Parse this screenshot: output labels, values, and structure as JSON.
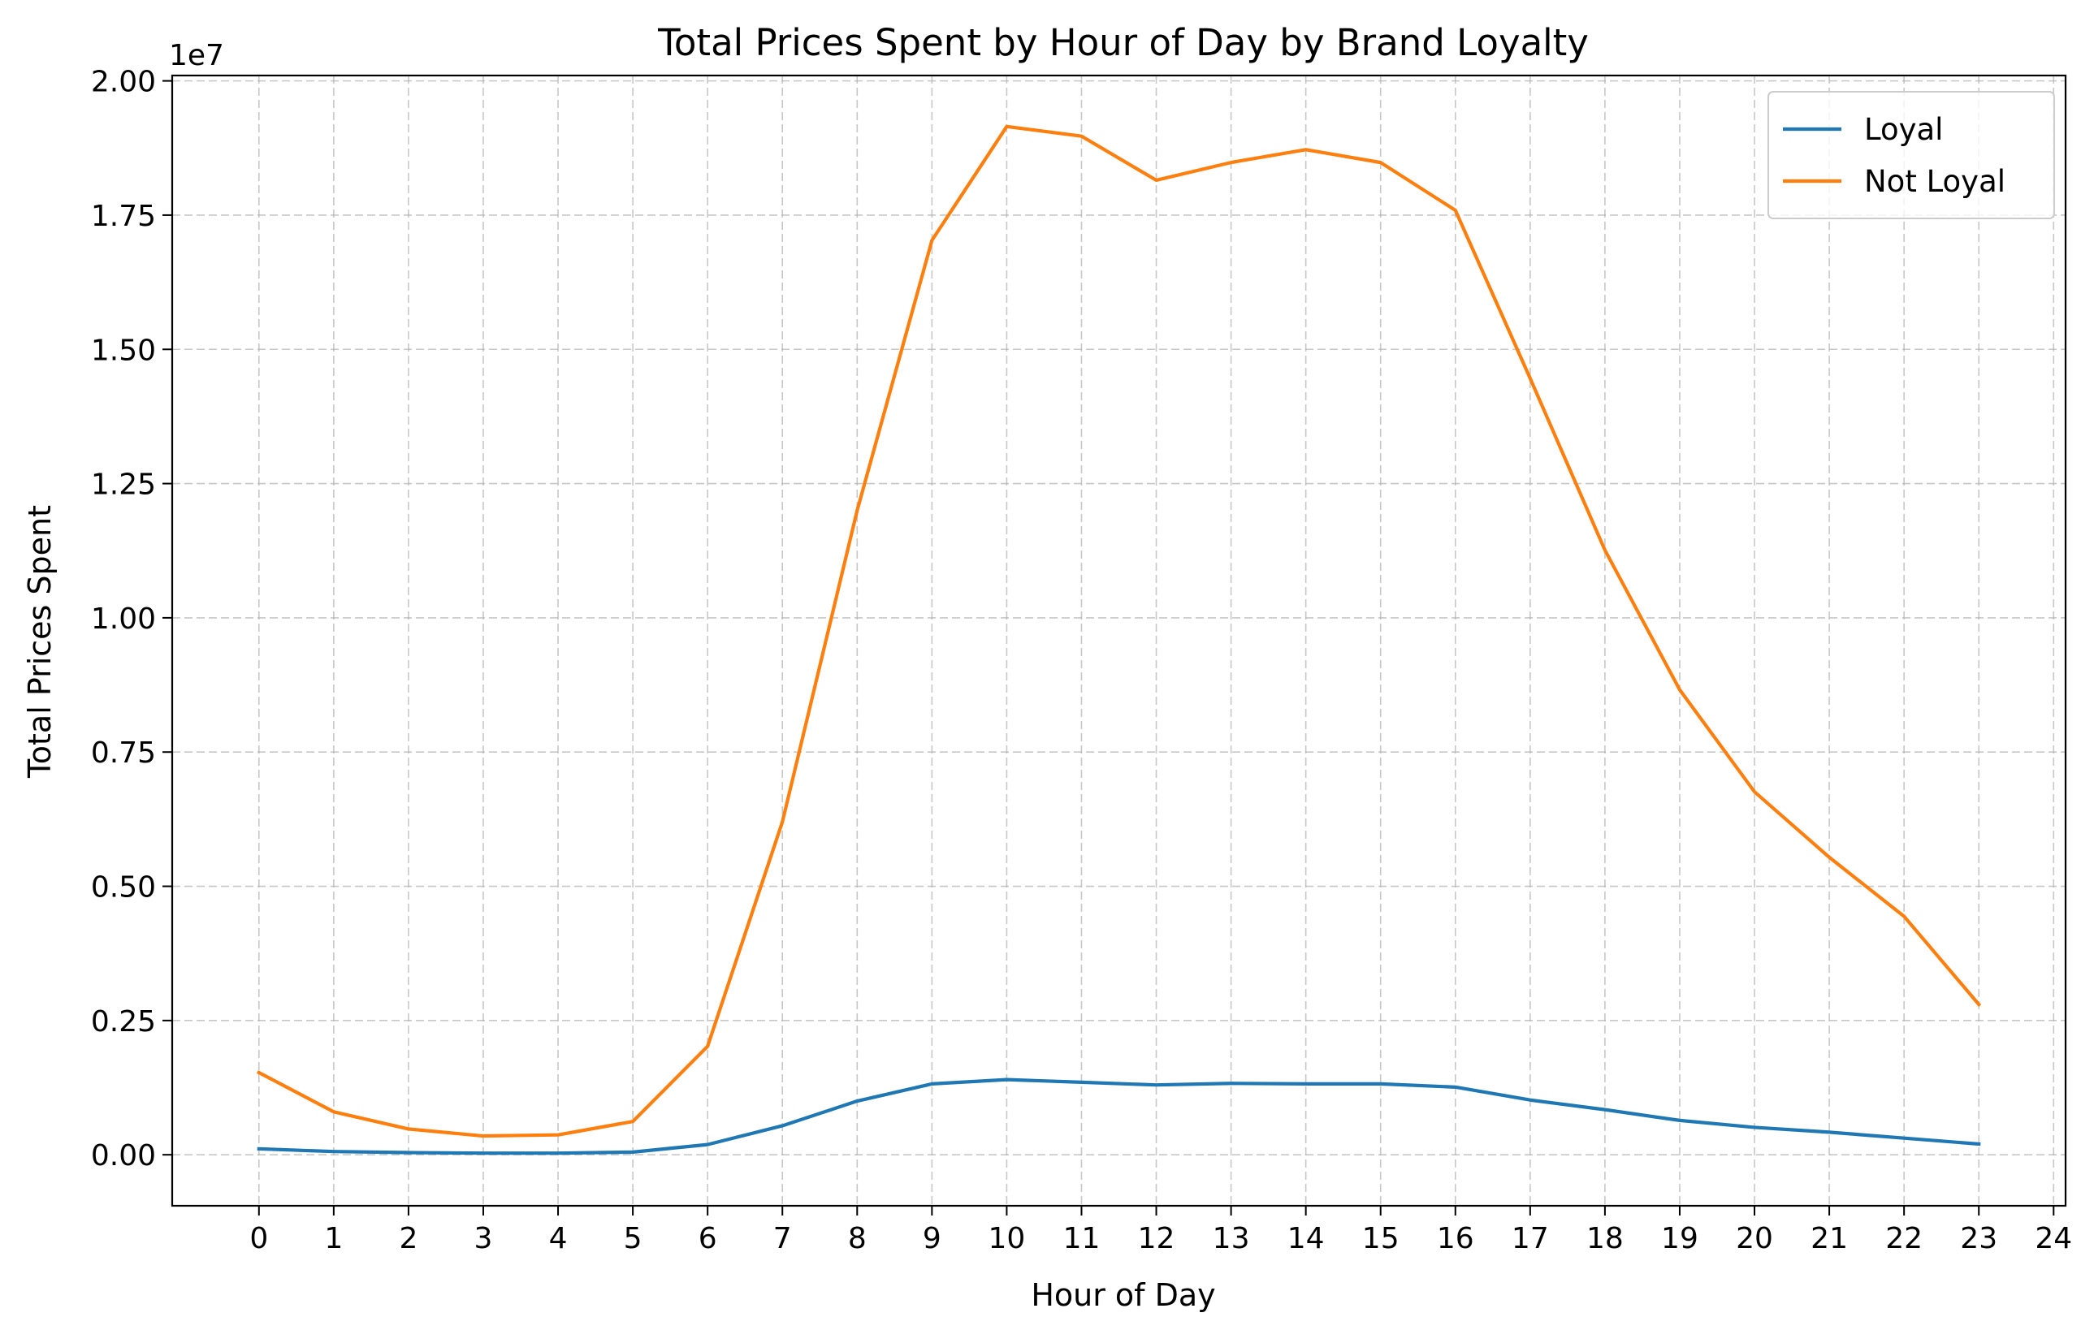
{
  "chart_data": {
    "type": "line",
    "title": "Total Prices Spent by Hour of Day by Brand Loyalty",
    "xlabel": "Hour of Day",
    "ylabel": "Total Prices Spent",
    "y_offset_label": "1e7",
    "x": [
      0,
      1,
      2,
      3,
      4,
      5,
      6,
      7,
      8,
      9,
      10,
      11,
      12,
      13,
      14,
      15,
      16,
      17,
      18,
      19,
      20,
      21,
      22,
      23
    ],
    "x_ticks": [
      0,
      1,
      2,
      3,
      4,
      5,
      6,
      7,
      8,
      9,
      10,
      11,
      12,
      13,
      14,
      15,
      16,
      17,
      18,
      19,
      20,
      21,
      22,
      23,
      24
    ],
    "x_tick_labels": [
      "0",
      "1",
      "2",
      "3",
      "4",
      "5",
      "6",
      "7",
      "8",
      "9",
      "10",
      "11",
      "12",
      "13",
      "14",
      "15",
      "16",
      "17",
      "18",
      "19",
      "20",
      "21",
      "22",
      "23",
      "24"
    ],
    "y_ticks": [
      0,
      2500000,
      5000000,
      7500000,
      10000000,
      12500000,
      15000000,
      17500000,
      20000000
    ],
    "y_tick_labels": [
      "0.00",
      "0.25",
      "0.50",
      "0.75",
      "1.00",
      "1.25",
      "1.50",
      "1.75",
      "2.00"
    ],
    "xlim": [
      -1.16,
      24.16
    ],
    "ylim": [
      -950000,
      20100000
    ],
    "grid": true,
    "legend_position": "top-right",
    "series": [
      {
        "name": "Loyal",
        "color": "#1f77b4",
        "values": [
          110000,
          60000,
          40000,
          30000,
          30000,
          50000,
          190000,
          540000,
          1000000,
          1320000,
          1400000,
          1350000,
          1300000,
          1330000,
          1320000,
          1320000,
          1260000,
          1020000,
          840000,
          640000,
          510000,
          420000,
          310000,
          200000
        ]
      },
      {
        "name": "Not Loyal",
        "color": "#ff7f0e",
        "values": [
          1530000,
          800000,
          480000,
          350000,
          370000,
          620000,
          2020000,
          6200000,
          12000000,
          17030000,
          19150000,
          18970000,
          18150000,
          18480000,
          18720000,
          18480000,
          17590000,
          14460000,
          11260000,
          8660000,
          6760000,
          5540000,
          4440000,
          2800000
        ]
      }
    ]
  }
}
